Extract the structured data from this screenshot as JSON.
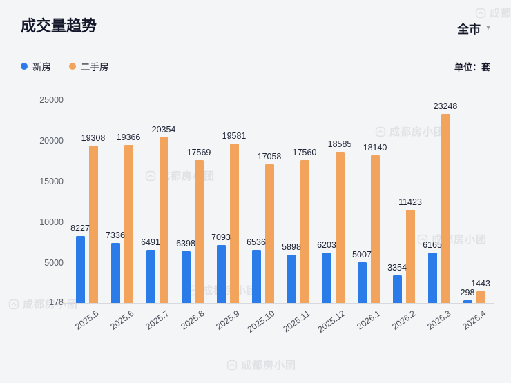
{
  "header": {
    "title": "成交量趋势",
    "region": "全市",
    "unit_label": "单位：套"
  },
  "legend": {
    "items": [
      {
        "label": "新房",
        "color": "#2b7ce9"
      },
      {
        "label": "二手房",
        "color": "#f2a35c"
      }
    ]
  },
  "watermark": {
    "text": "成都房小团"
  },
  "chart_data": {
    "type": "bar",
    "title": "成交量趋势",
    "categories": [
      "2025.5",
      "2025.6",
      "2025.7",
      "2025.8",
      "2025.9",
      "2025.10",
      "2025.11",
      "2025.12",
      "2026.1",
      "2026.2",
      "2026.3",
      "2026.4"
    ],
    "series": [
      {
        "name": "新房",
        "color": "#2b7ce9",
        "values": [
          8227,
          7336,
          6491,
          6398,
          7093,
          6536,
          5898,
          6203,
          5007,
          3354,
          6165,
          298
        ]
      },
      {
        "name": "二手房",
        "color": "#f2a35c",
        "values": [
          19308,
          19366,
          20354,
          17569,
          19581,
          17058,
          17560,
          18585,
          18140,
          11423,
          23248,
          1443
        ]
      }
    ],
    "y_ticks": [
      25000,
      20000,
      15000,
      10000,
      5000,
      178
    ],
    "ylim": [
      0,
      25000
    ],
    "unit": "套",
    "grid": false,
    "legend_position": "top-left"
  }
}
